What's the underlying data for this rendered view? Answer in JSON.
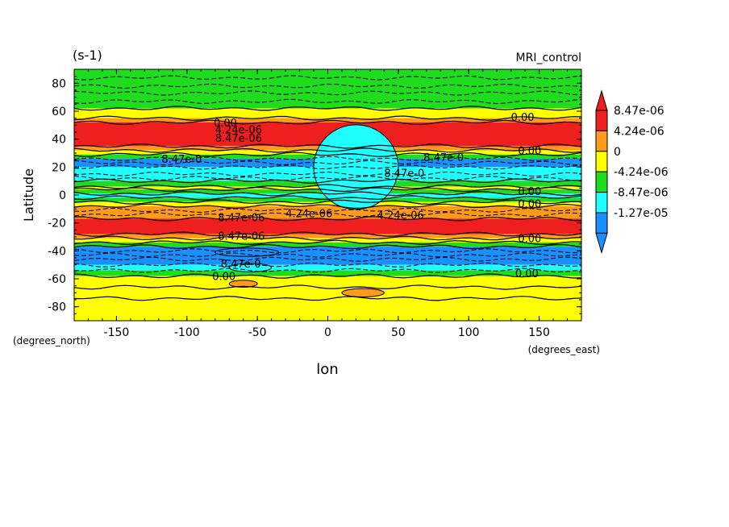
{
  "chart_data": {
    "type": "heatmap",
    "title_left": "(s-1)",
    "title_right": "MRI_control",
    "xlabel": "lon",
    "ylabel": "Latitude",
    "x_units": "(degrees_east)",
    "y_units": "(degrees_north)",
    "xlim": [
      -180,
      180
    ],
    "ylim": [
      -90,
      90
    ],
    "x_ticks": [
      "-150",
      "-100",
      "-50",
      "0",
      "50",
      "100",
      "150"
    ],
    "x_tick_values": [
      -150,
      -100,
      -50,
      0,
      50,
      100,
      150
    ],
    "y_ticks": [
      "80",
      "60",
      "40",
      "20",
      "0",
      "-20",
      "-40",
      "-60",
      "-80"
    ],
    "y_tick_values": [
      80,
      60,
      40,
      20,
      0,
      -20,
      -40,
      -60,
      -80
    ],
    "colorbar": {
      "levels": [
        "8.47e-06",
        "4.24e-06",
        "0",
        "-4.24e-06",
        "-8.47e-06",
        "-1.27e-05"
      ],
      "colors": [
        "#ef1f1f",
        "#ff9a1a",
        "#ffff00",
        "#1fdc1f",
        "#1fffff",
        "#1a90ff"
      ],
      "extend": "both"
    },
    "bands": [
      {
        "lat_top": 90,
        "lat_bottom": 62,
        "color": "#1fdc1f"
      },
      {
        "lat_top": 62,
        "lat_bottom": 55,
        "color": "#ffff00"
      },
      {
        "lat_top": 55,
        "lat_bottom": 52,
        "color": "#ff9a1a"
      },
      {
        "lat_top": 52,
        "lat_bottom": 35,
        "color": "#ef1f1f"
      },
      {
        "lat_top": 35,
        "lat_bottom": 32,
        "color": "#ff9a1a"
      },
      {
        "lat_top": 32,
        "lat_bottom": 29,
        "color": "#ffff00"
      },
      {
        "lat_top": 29,
        "lat_bottom": 26,
        "color": "#1fdc1f"
      },
      {
        "lat_top": 26,
        "lat_bottom": 20,
        "color": "#1a90ff"
      },
      {
        "lat_top": 20,
        "lat_bottom": 10,
        "color": "#1fffff"
      },
      {
        "lat_top": 10,
        "lat_bottom": 6,
        "color": "#1fdc1f"
      },
      {
        "lat_top": 6,
        "lat_bottom": 4,
        "color": "#ffff00"
      },
      {
        "lat_top": 4,
        "lat_bottom": 1,
        "color": "#1fdc1f"
      },
      {
        "lat_top": 1,
        "lat_bottom": -2,
        "color": "#1fffff"
      },
      {
        "lat_top": -2,
        "lat_bottom": -5,
        "color": "#1fdc1f"
      },
      {
        "lat_top": -5,
        "lat_bottom": -8,
        "color": "#ffff00"
      },
      {
        "lat_top": -8,
        "lat_bottom": -17,
        "color": "#ff9a1a"
      },
      {
        "lat_top": -17,
        "lat_bottom": -28,
        "color": "#ef1f1f"
      },
      {
        "lat_top": -28,
        "lat_bottom": -31,
        "color": "#ff9a1a"
      },
      {
        "lat_top": -31,
        "lat_bottom": -34,
        "color": "#ffff00"
      },
      {
        "lat_top": -34,
        "lat_bottom": -37,
        "color": "#1fdc1f"
      },
      {
        "lat_top": -37,
        "lat_bottom": -50,
        "color": "#1a90ff"
      },
      {
        "lat_top": -50,
        "lat_bottom": -54,
        "color": "#1fffff"
      },
      {
        "lat_top": -54,
        "lat_bottom": -58,
        "color": "#1fdc1f"
      },
      {
        "lat_top": -58,
        "lat_bottom": -90,
        "color": "#ffff00"
      }
    ],
    "patches": [
      {
        "lon": [
          -70,
          -40
        ],
        "lat": [
          -55,
          -49
        ],
        "color": "#1fffff"
      },
      {
        "lon": [
          -80,
          -35
        ],
        "lat": [
          -44,
          -38
        ],
        "color": "#1a90ff"
      },
      {
        "lon": [
          -70,
          -50
        ],
        "lat": [
          -66,
          -61
        ],
        "color": "#ff9a1a"
      },
      {
        "lon": [
          10,
          40
        ],
        "lat": [
          -73,
          -67
        ],
        "color": "#ff9a1a"
      },
      {
        "lon": [
          -10,
          50
        ],
        "lat": [
          22,
          18
        ],
        "color": "#1fffff"
      }
    ],
    "solid_contour_lats": [
      62,
      55,
      52,
      35,
      32,
      29,
      10,
      6,
      4,
      1,
      -2,
      -5,
      -8,
      -17,
      -28,
      -31,
      -34,
      -37,
      -58,
      -66,
      -74
    ],
    "dashed_contour_lats": [
      84,
      78,
      73,
      67,
      26,
      23,
      20,
      15,
      12,
      -11,
      -14,
      -40,
      -43,
      -46,
      -50,
      -54
    ],
    "contour_labels": [
      {
        "text": "0.00",
        "lon": -81,
        "lat": 52
      },
      {
        "text": "4.24e-06",
        "lon": -80,
        "lat": 47
      },
      {
        "text": "8.47e-06",
        "lon": -80,
        "lat": 41
      },
      {
        "text": "8.47e-0",
        "lon": -118,
        "lat": 26
      },
      {
        "text": "8.47e-0",
        "lon": 68,
        "lat": 27
      },
      {
        "text": "8.47e-0",
        "lon": 40,
        "lat": 16
      },
      {
        "text": "4.24e-06",
        "lon": -30,
        "lat": -13
      },
      {
        "text": "4.24e-06",
        "lon": 35,
        "lat": -14
      },
      {
        "text": "8.47e-06",
        "lon": -78,
        "lat": -16
      },
      {
        "text": "8.47e-06",
        "lon": -78,
        "lat": -29
      },
      {
        "text": "8.47e-0",
        "lon": -76,
        "lat": -49
      },
      {
        "text": "0.00",
        "lon": -82,
        "lat": -58
      },
      {
        "text": "0.00",
        "lon": 130,
        "lat": 56
      },
      {
        "text": "0.00",
        "lon": 135,
        "lat": 32
      },
      {
        "text": "0.00",
        "lon": 135,
        "lat": 3
      },
      {
        "text": "0.00",
        "lon": 135,
        "lat": -6
      },
      {
        "text": "0.00",
        "lon": 135,
        "lat": -31
      },
      {
        "text": "0.00",
        "lon": 133,
        "lat": -56
      }
    ]
  }
}
